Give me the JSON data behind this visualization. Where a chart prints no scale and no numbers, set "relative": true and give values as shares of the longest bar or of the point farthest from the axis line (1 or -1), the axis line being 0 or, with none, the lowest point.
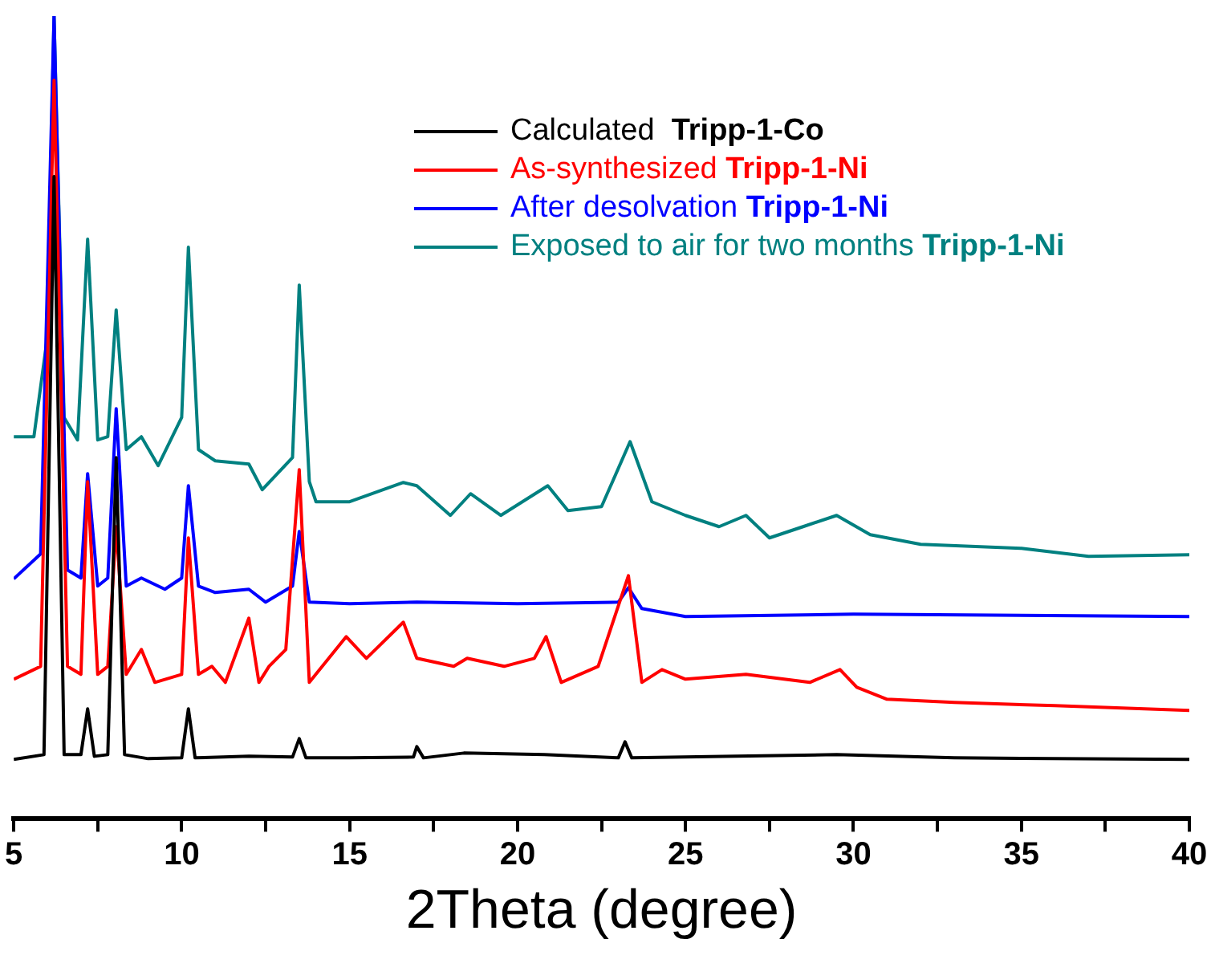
{
  "chart_data": {
    "type": "line",
    "relative": true,
    "xlabel": "2Theta (degree)",
    "xlim": [
      5,
      40
    ],
    "xticks": [
      5,
      {
        "value": 7.5,
        "label": null
      },
      10,
      {
        "value": 12.5,
        "label": null
      },
      15,
      {
        "value": 17.5,
        "label": null
      },
      20,
      {
        "value": 22.5,
        "label": null
      },
      25,
      {
        "value": 27.5,
        "label": null
      },
      30,
      {
        "value": 32.5,
        "label": null
      },
      35,
      {
        "value": 37.5,
        "label": null
      },
      40
    ],
    "legend": "top right",
    "grid": false,
    "marker": "none",
    "line_style": "solid",
    "series": [
      {
        "name": "Calculated  Tripp-1-Co",
        "color": "#000000",
        "x": [
          5,
          5.9,
          6.2,
          6.5,
          7.0,
          7.2,
          7.4,
          7.8,
          8.05,
          8.3,
          9,
          10.0,
          10.2,
          10.4,
          12,
          13.3,
          13.5,
          13.7,
          15,
          16.9,
          17.0,
          17.2,
          18.4,
          20.8,
          23.0,
          23.2,
          23.4,
          26.5,
          29.5,
          33,
          40
        ],
        "values": [
          0.074,
          0.08,
          0.8,
          0.08,
          0.08,
          0.137,
          0.078,
          0.08,
          0.45,
          0.08,
          0.075,
          0.076,
          0.137,
          0.076,
          0.078,
          0.077,
          0.1,
          0.076,
          0.076,
          0.077,
          0.09,
          0.076,
          0.082,
          0.08,
          0.076,
          0.096,
          0.076,
          0.078,
          0.08,
          0.076,
          0.074
        ]
      },
      {
        "name": "As-synthesized Tripp-1-Ni",
        "color": "#ff0000",
        "x": [
          5,
          5.8,
          6.2,
          6.6,
          7.0,
          7.2,
          7.5,
          7.8,
          8.05,
          8.35,
          8.8,
          9.2,
          10.0,
          10.2,
          10.5,
          10.9,
          11.3,
          12.0,
          12.3,
          12.6,
          13.1,
          13.5,
          13.8,
          14.9,
          15.5,
          16.6,
          17.0,
          18.1,
          18.5,
          19.6,
          20.5,
          20.85,
          21.3,
          22.4,
          23.3,
          23.7,
          24.3,
          25,
          26.8,
          28.7,
          29.6,
          30.1,
          31,
          33,
          36,
          40
        ],
        "values": [
          0.174,
          0.19,
          0.92,
          0.19,
          0.18,
          0.42,
          0.18,
          0.19,
          0.364,
          0.18,
          0.211,
          0.17,
          0.18,
          0.35,
          0.18,
          0.19,
          0.17,
          0.25,
          0.17,
          0.19,
          0.211,
          0.435,
          0.17,
          0.227,
          0.2,
          0.245,
          0.2,
          0.19,
          0.2,
          0.19,
          0.2,
          0.227,
          0.17,
          0.19,
          0.303,
          0.17,
          0.186,
          0.174,
          0.18,
          0.17,
          0.186,
          0.164,
          0.149,
          0.145,
          0.141,
          0.135
        ]
      },
      {
        "name": "After desolvation Tripp-1-Ni",
        "color": "#0000ff",
        "x": [
          5,
          5.8,
          6.2,
          6.6,
          7.0,
          7.2,
          7.5,
          7.8,
          8.05,
          8.35,
          8.8,
          9.5,
          10.0,
          10.2,
          10.5,
          11,
          12,
          12.5,
          13.3,
          13.5,
          13.8,
          15,
          17,
          20,
          23.0,
          23.3,
          23.7,
          25,
          30,
          40
        ],
        "values": [
          0.299,
          0.33,
          1.0,
          0.31,
          0.3,
          0.43,
          0.29,
          0.3,
          0.511,
          0.29,
          0.3,
          0.286,
          0.3,
          0.415,
          0.29,
          0.282,
          0.286,
          0.27,
          0.29,
          0.358,
          0.27,
          0.268,
          0.27,
          0.268,
          0.27,
          0.288,
          0.262,
          0.252,
          0.255,
          0.252
        ]
      },
      {
        "name": "Exposed to air for two months Tripp-1-Ni",
        "color": "#008080",
        "x": [
          5,
          5.6,
          6.0,
          6.2,
          6.5,
          6.9,
          7.2,
          7.5,
          7.8,
          8.05,
          8.35,
          8.8,
          9.3,
          10.0,
          10.2,
          10.5,
          11,
          12,
          12.4,
          13.3,
          13.5,
          13.8,
          14,
          15,
          16.6,
          17,
          18,
          18.6,
          19.5,
          20.9,
          21.5,
          22.5,
          23.35,
          24,
          25,
          26,
          26.8,
          27.5,
          28.5,
          29.5,
          30.5,
          32,
          35,
          37,
          40
        ],
        "values": [
          0.476,
          0.476,
          0.6,
          1.0,
          0.5,
          0.472,
          0.722,
          0.472,
          0.476,
          0.634,
          0.46,
          0.476,
          0.44,
          0.5,
          0.712,
          0.46,
          0.446,
          0.442,
          0.41,
          0.45,
          0.665,
          0.42,
          0.395,
          0.395,
          0.419,
          0.415,
          0.378,
          0.405,
          0.378,
          0.415,
          0.384,
          0.389,
          0.47,
          0.395,
          0.378,
          0.364,
          0.378,
          0.35,
          0.364,
          0.378,
          0.354,
          0.342,
          0.337,
          0.327,
          0.329
        ]
      }
    ]
  }
}
